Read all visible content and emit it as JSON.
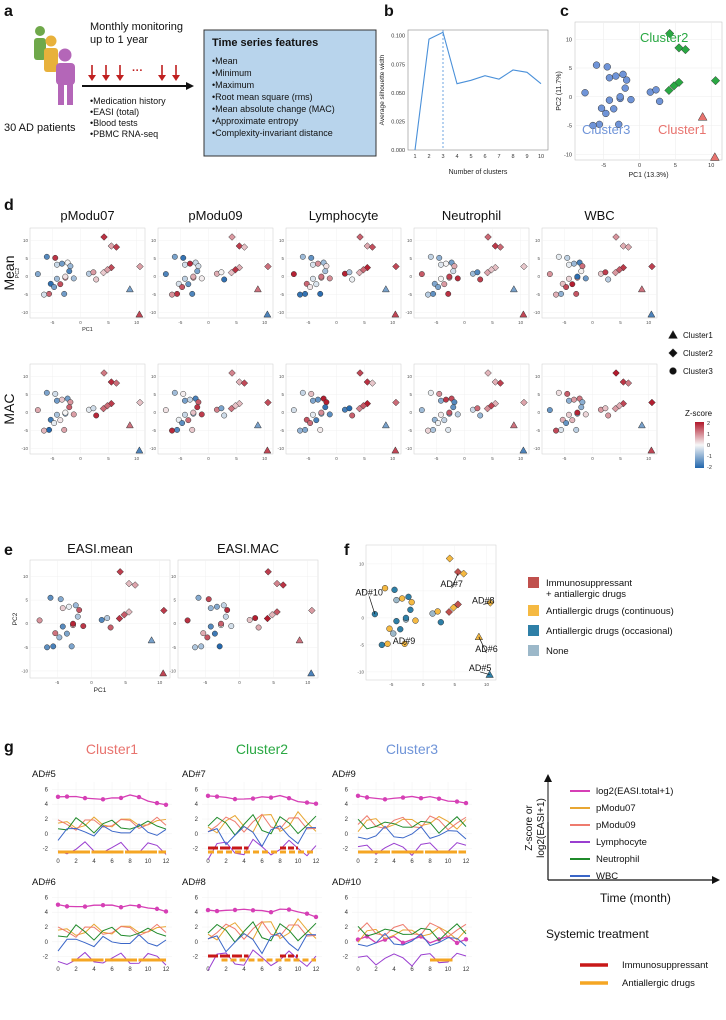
{
  "panel_a": {
    "label": "a",
    "monitor_text": [
      "Monthly monitoring",
      "up to 1 year"
    ],
    "patients": "30 AD patients",
    "dots": "···",
    "data_items": [
      "•Medication history",
      "•EASI (total)",
      "•Blood tests",
      "•PBMC RNA-seq"
    ],
    "features_title": "Time series features",
    "features": [
      "•Mean",
      "•Minimum",
      "•Maximum",
      "•Root mean square (rms)",
      "•Mean absolute change (MAC)",
      "•Approximate entropy",
      "•Complexity-invariant distance"
    ]
  },
  "panel_labels": {
    "b": "b",
    "c": "c",
    "d": "d",
    "e": "e",
    "f": "f",
    "g": "g"
  },
  "panel_d": {
    "columns": [
      "pModu07",
      "pModu09",
      "Lymphocyte",
      "Neutrophil",
      "WBC"
    ],
    "rows": [
      "Mean",
      "MAC"
    ],
    "xlabel": "PC1",
    "ylabel": "PC2",
    "shape_legend": [
      "Cluster1",
      "Cluster2",
      "Cluster3"
    ],
    "zscore_title": "Z-score",
    "zscore_ticks": [
      "2",
      "1",
      "0",
      "-1",
      "-2"
    ]
  },
  "panel_e": {
    "titles": [
      "EASI.mean",
      "EASI.MAC"
    ],
    "xlabel": "PC1",
    "ylabel": "PC2"
  },
  "panel_f": {
    "point_labels": [
      "AD#10",
      "AD#7",
      "AD#8",
      "AD#9",
      "AD#6",
      "AD#5"
    ],
    "legend": [
      {
        "label": [
          "Immunosuppressant",
          "+ antiallergic drugs"
        ],
        "color": "#c0504d"
      },
      {
        "label": [
          "Antiallergic drugs (continuous)"
        ],
        "color": "#f5b942"
      },
      {
        "label": [
          "Antiallergic drugs (occasional)"
        ],
        "color": "#2e7fa7"
      },
      {
        "label": [
          "None"
        ],
        "color": "#9cb8c9"
      }
    ]
  },
  "panel_g": {
    "clusters": [
      {
        "name": "Cluster1",
        "color": "#e8736e"
      },
      {
        "name": "Cluster2",
        "color": "#2aa843"
      },
      {
        "name": "Cluster3",
        "color": "#6f94d8"
      }
    ],
    "patients": [
      "AD#5",
      "AD#7",
      "AD#9",
      "AD#6",
      "AD#8",
      "AD#10"
    ],
    "x_ticks": [
      "0",
      "2",
      "4",
      "6",
      "8",
      "10",
      "12"
    ],
    "y_ticks": [
      "6",
      "4",
      "2",
      "0",
      "-2"
    ],
    "series_legend": [
      {
        "label": "log2(EASI.total+1)",
        "color": "#d63fb5"
      },
      {
        "label": "pModu07",
        "color": "#e8a632"
      },
      {
        "label": "pModu09",
        "color": "#ee7b6e"
      },
      {
        "label": "Lymphocyte",
        "color": "#9a3fd0"
      },
      {
        "label": "Neutrophil",
        "color": "#1f8a2a"
      },
      {
        "label": "WBC",
        "color": "#3a66c8"
      }
    ],
    "axis_y": [
      "Z-score or",
      "log2(EASI+1)"
    ],
    "axis_x": "Time (month)",
    "treatment_title": "Systemic treatment",
    "treatment_legend": [
      {
        "label": "Immunosuppressant",
        "color": "#c81818"
      },
      {
        "label": "Antiallergic drugs",
        "color": "#f5a623"
      }
    ]
  },
  "chart_data": [
    {
      "type": "line",
      "panel": "b",
      "title": "",
      "x": [
        1,
        2,
        3,
        4,
        5,
        6,
        7,
        8,
        9,
        10
      ],
      "values": [
        0.0,
        0.097,
        0.103,
        0.058,
        0.061,
        0.065,
        0.062,
        0.07,
        0.068,
        0.058
      ],
      "xlabel": "Number of clusters",
      "ylabel": "Average silhouette width",
      "ylim": [
        0,
        0.1
      ],
      "y_ticks": [
        "0.000",
        "0.025",
        "0.050",
        "0.075",
        "0.100"
      ],
      "marked_x": 3
    },
    {
      "type": "scatter",
      "panel": "c",
      "xlabel": "PC1 (13.3%)",
      "ylabel": "PC2 (11.7%)",
      "xlim": [
        -9,
        11.5
      ],
      "ylim": [
        -11,
        13
      ],
      "x_ticks": [
        "-5",
        "0",
        "5",
        "10"
      ],
      "y_ticks": [
        "10",
        "5",
        "0",
        "-5",
        "-10"
      ],
      "series": [
        {
          "name": "Cluster1",
          "color": "#e8736e",
          "shape": "triangle",
          "x": [
            8.8,
            10.5
          ],
          "y": [
            -3.5,
            -10.5
          ]
        },
        {
          "name": "Cluster2",
          "color": "#2aa843",
          "shape": "diamond",
          "x": [
            4.2,
            5.5,
            6.4,
            5.5,
            4.8,
            4.1,
            10.6
          ],
          "y": [
            11,
            8.5,
            8.2,
            2.5,
            1.9,
            1.1,
            2.8
          ]
        },
        {
          "name": "Cluster3",
          "color": "#6f94d8",
          "shape": "circle",
          "x": [
            -7.6,
            -6,
            -4.5,
            -4.2,
            -3.3,
            -2.3,
            -1.8,
            -2.0,
            -2.7,
            -1.2,
            -4.2,
            -5.3,
            -3.6,
            -4.7,
            -5.6,
            -6.5,
            -2.9,
            -2.7,
            1.5,
            2.3,
            2.8
          ],
          "y": [
            0.7,
            5.5,
            5.2,
            3.3,
            3.6,
            3.9,
            2.9,
            1.5,
            -0.3,
            -0.5,
            -0.6,
            -2.0,
            -2.1,
            -2.9,
            -4.8,
            -5.0,
            -4.8,
            0.0,
            0.8,
            1.2,
            -0.8
          ]
        }
      ]
    },
    {
      "type": "line",
      "panel": "g",
      "x": [
        0,
        1,
        2,
        3,
        4,
        5,
        6,
        7,
        8,
        9,
        10,
        11,
        12
      ],
      "ylim": [
        -3,
        7
      ],
      "series": [
        {
          "name": "log2(EASI.total+1)",
          "values": [
            5.0,
            4.9,
            4.9,
            4.8,
            4.85,
            4.8,
            4.9,
            4.75,
            5.1,
            4.9,
            4.5,
            4.3,
            4.0
          ]
        },
        {
          "name": "pModu07",
          "values": [
            0.8,
            1.3,
            1.4,
            1.2,
            1.5,
            1.2,
            1.6,
            1.7,
            1.3,
            1.5,
            1.7,
            1.2,
            1.5
          ]
        },
        {
          "name": "pModu09",
          "values": [
            1.4,
            1.8,
            1.2,
            1.5,
            1.6,
            1.7,
            1.5,
            1.4,
            1.9,
            1.6,
            1.3,
            1.7,
            1.6
          ]
        },
        {
          "name": "Lymphocyte",
          "values": [
            -2.5,
            -2.1,
            -2.3,
            -1.9,
            -2.2,
            -2.0,
            -2.4,
            -1.8,
            -2.1,
            -2.3,
            -2.0,
            -1.9,
            -2.2
          ]
        },
        {
          "name": "Neutrophil",
          "values": [
            1.3,
            1.0,
            1.6,
            1.1,
            0.9,
            1.5,
            1.2,
            1.0,
            1.4,
            0.8,
            1.2,
            1.6,
            1.2
          ]
        },
        {
          "name": "WBC",
          "values": [
            -0.4,
            0.2,
            -0.1,
            0.5,
            0.0,
            0.3,
            -0.2,
            0.6,
            0.1,
            0.4,
            0.0,
            0.3,
            0.2
          ]
        }
      ]
    }
  ]
}
